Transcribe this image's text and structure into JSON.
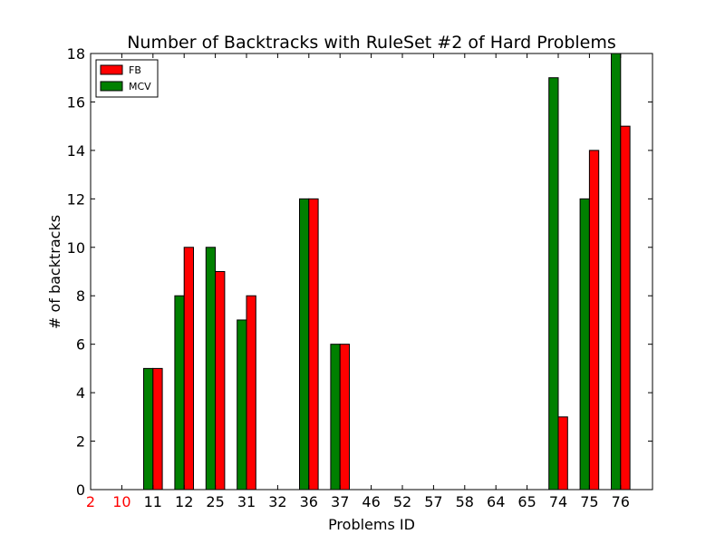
{
  "chart_data": {
    "type": "bar",
    "title": "Number of Backtracks with RuleSet #2 of Hard Problems",
    "xlabel": "Problems ID",
    "ylabel": "# of backtracks",
    "ylim": [
      0,
      18
    ],
    "yticks": [
      0,
      2,
      4,
      6,
      8,
      10,
      12,
      14,
      16,
      18
    ],
    "categories": [
      "2",
      "10",
      "11",
      "12",
      "25",
      "31",
      "32",
      "36",
      "37",
      "46",
      "52",
      "57",
      "58",
      "64",
      "65",
      "74",
      "75",
      "76"
    ],
    "highlighted_categories": [
      "2",
      "10"
    ],
    "highlight_color": "#ff0000",
    "series": [
      {
        "name": "MCV",
        "color": "#008000",
        "values": [
          0,
          0,
          5,
          8,
          10,
          7,
          0,
          12,
          6,
          0,
          0,
          0,
          0,
          0,
          0,
          17,
          12,
          18
        ]
      },
      {
        "name": "FB",
        "color": "#ff0000",
        "values": [
          0,
          0,
          5,
          10,
          9,
          8,
          0,
          12,
          6,
          0,
          0,
          0,
          0,
          0,
          0,
          3,
          14,
          15
        ]
      }
    ],
    "legend": {
      "placement": "top-left",
      "order": [
        "FB",
        "MCV"
      ]
    },
    "grid": false
  }
}
